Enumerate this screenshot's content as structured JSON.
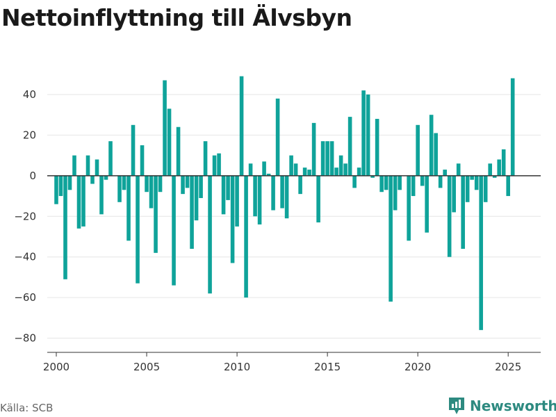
{
  "title": "Nettoinflyttning till Älvsbyn",
  "source": "Källa: SCB",
  "brand": "Newsworthy",
  "colors": {
    "bar": "#0fa39a",
    "grid": "#e6e6e6",
    "zero": "#333333",
    "brand": "#2d8a80"
  },
  "chart_data": {
    "type": "bar",
    "title": "Nettoinflyttning till Älvsbyn",
    "xlabel": "",
    "ylabel": "",
    "ylim": [
      -87,
      53
    ],
    "yticks": [
      40,
      20,
      0,
      -20,
      -40,
      -60,
      -80
    ],
    "ytick_labels": [
      "40",
      "20",
      "0",
      "−20",
      "−40",
      "−60",
      "−80"
    ],
    "xlim": [
      1999.5,
      2026.8
    ],
    "xticks": [
      2000,
      2005,
      2010,
      2015,
      2020,
      2025
    ],
    "xtick_labels": [
      "2000",
      "2005",
      "2010",
      "2015",
      "2020",
      "2025"
    ],
    "grid": true,
    "bar_period_years": 0.25,
    "series": [
      {
        "values": [
          -14,
          -10,
          -51,
          -7,
          10,
          -26,
          -25,
          10,
          -4,
          8,
          -19,
          -2,
          17,
          0,
          -13,
          -7,
          -32,
          25,
          -53,
          15,
          -8,
          -16,
          -38,
          -8,
          47,
          33,
          -54,
          24,
          -9,
          -6,
          -36,
          -22,
          -11,
          17,
          -58,
          10,
          11,
          -19,
          -12,
          -43,
          -25,
          49,
          -60,
          6,
          -20,
          -24,
          7,
          1,
          -17,
          38,
          -16,
          -21,
          10,
          6,
          -9,
          4,
          3,
          26,
          -23,
          17,
          17,
          17,
          4,
          10,
          6,
          29,
          -6,
          4,
          42,
          40,
          -1,
          28,
          -8,
          -7,
          -62,
          -17,
          -7,
          0,
          -32,
          -10,
          25,
          -5,
          -28,
          30,
          21,
          -6,
          3,
          -40,
          -18,
          6,
          -36,
          -13,
          -2,
          -7,
          -76,
          -13,
          6,
          -1,
          8,
          13,
          -10,
          48
        ]
      }
    ]
  }
}
